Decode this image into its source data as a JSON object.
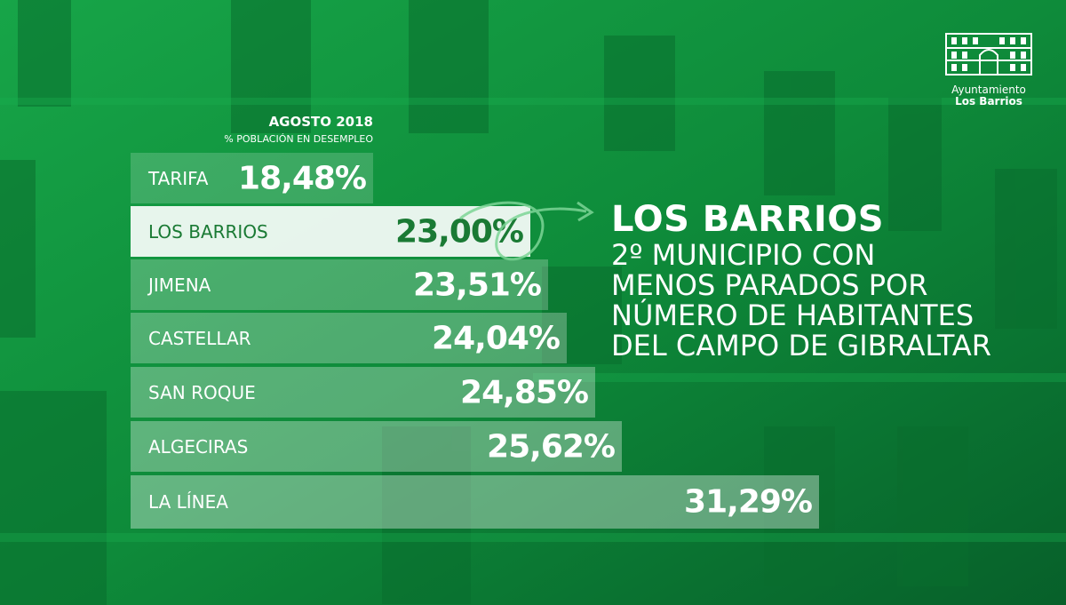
{
  "theme": {
    "bar_fill": "#ffffff",
    "highlight_text": "#1a7a34",
    "background": "#0e8a3a"
  },
  "chart_data": {
    "type": "bar",
    "orientation": "horizontal",
    "title": "AGOSTO 2018",
    "subtitle": "% POBLACIÓN EN DESEMPLEO",
    "categories": [
      "TARIFA",
      "LOS BARRIOS",
      "JIMENA",
      "CASTELLAR",
      "SAN ROQUE",
      "ALGECIRAS",
      "LA LÍNEA"
    ],
    "values": [
      18.48,
      23.0,
      23.51,
      24.04,
      24.85,
      25.62,
      31.29
    ],
    "value_labels": [
      "18,48%",
      "23,00%",
      "23,51%",
      "24,04%",
      "24,85%",
      "25,62%",
      "31,29%"
    ],
    "highlighted": "LOS BARRIOS",
    "grid": false,
    "legend": "none"
  },
  "headline": {
    "title": "LOS BARRIOS",
    "lines": [
      "2º MUNICIPIO CON",
      "MENOS PARADOS POR",
      "NÚMERO DE HABITANTES",
      "DEL CAMPO DE GIBRALTAR"
    ]
  },
  "logo": {
    "line1": "Ayuntamiento",
    "line2": "Los Barrios"
  }
}
